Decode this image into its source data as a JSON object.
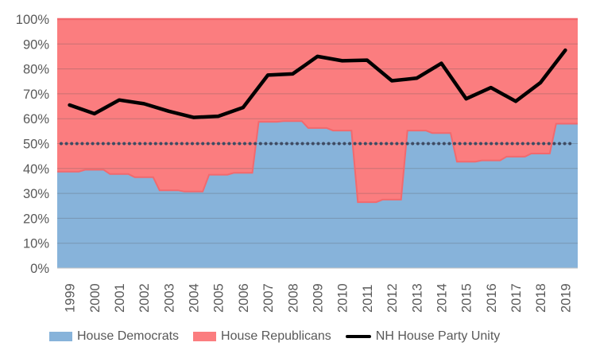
{
  "chart_data": {
    "type": "area",
    "title": "",
    "stacked_percent": true,
    "categories": [
      "1999",
      "2000",
      "2001",
      "2002",
      "2003",
      "2004",
      "2005",
      "2006",
      "2007",
      "2008",
      "2009",
      "2010",
      "2011",
      "2012",
      "2013",
      "2014",
      "2015",
      "2016",
      "2017",
      "2018",
      "2019"
    ],
    "series": [
      {
        "name": "House Democrats",
        "type": "stacked-area",
        "color": "#87B3DA",
        "values": [
          38.75,
          39.5,
          37.75,
          36.5,
          31.25,
          30.75,
          37.5,
          38.25,
          58.75,
          59,
          56.25,
          55.25,
          26.5,
          27.5,
          55.25,
          54.25,
          42.75,
          43.25,
          44.75,
          46,
          58
        ]
      },
      {
        "name": "House Republicans",
        "type": "stacked-area",
        "color": "#FB7D7F",
        "stroke": "#F2696D",
        "values": [
          61.25,
          60.5,
          62.25,
          63.5,
          68.75,
          69.25,
          62.5,
          61.75,
          41.25,
          41,
          43.75,
          44.75,
          73.5,
          72.5,
          44.75,
          45.75,
          57.25,
          56.75,
          55.25,
          54,
          42
        ]
      },
      {
        "name": "NH House Party Unity",
        "type": "line",
        "color": "#000000",
        "values": [
          65.5,
          62,
          67.5,
          66,
          63,
          60.5,
          61,
          64.5,
          77.5,
          78,
          85,
          83.25,
          83.5,
          75.25,
          76.25,
          82.25,
          68,
          72.5,
          67,
          74.5,
          87.5
        ]
      },
      {
        "name": "50% reference line",
        "type": "dotted-line",
        "color": "#3E4B63",
        "constant_value": 50
      }
    ],
    "ylim": [
      0,
      100
    ],
    "yticks": [
      "0%",
      "10%",
      "20%",
      "30%",
      "40%",
      "50%",
      "60%",
      "70%",
      "80%",
      "90%",
      "100%"
    ],
    "grid": true,
    "legend_position": "bottom",
    "colors": {
      "grid": "rgba(85,85,85,0.30)",
      "baseline_axis": "#C6C6C6",
      "reference_dots": "#3E4B63",
      "tick_text": "#595959"
    }
  }
}
